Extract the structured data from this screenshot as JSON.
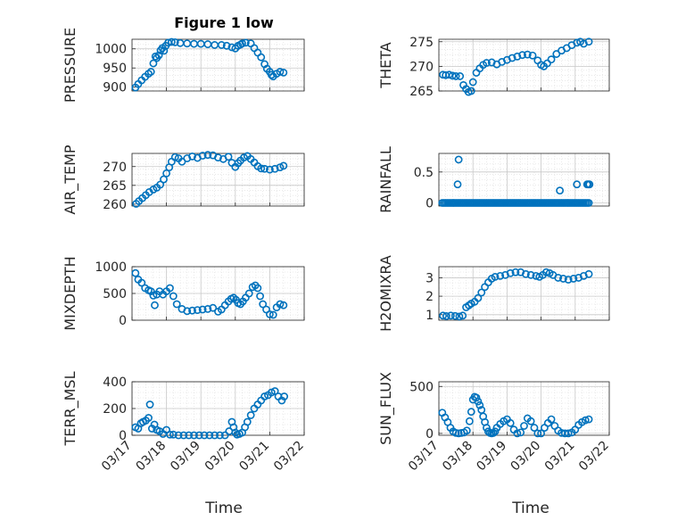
{
  "figure": {
    "title": "Figure 1 low",
    "xlabel": "Time"
  },
  "chart_data": [
    {
      "type": "scatter",
      "ylabel": "PRESSURE",
      "xlim": [
        "03/17",
        "03/22"
      ],
      "ylim": [
        890,
        1025
      ],
      "yticks": [
        "900",
        "950",
        "1000"
      ],
      "xtick_labels": [
        "03/17",
        "03/18",
        "03/19",
        "03/20",
        "03/21",
        "03/22"
      ],
      "grid": true,
      "series": [
        {
          "x": [
            17.1,
            17.18,
            17.28,
            17.38,
            17.48,
            17.55,
            17.62,
            17.68,
            17.72,
            17.78,
            17.83,
            17.88,
            17.93,
            17.98,
            18.05,
            18.15,
            18.25,
            18.4,
            18.6,
            18.8,
            19.0,
            19.2,
            19.4,
            19.6,
            19.75,
            19.9,
            20.0,
            20.08,
            20.15,
            20.2,
            20.3,
            20.45,
            20.55,
            20.65,
            20.75,
            20.85,
            20.92,
            21.0,
            21.05,
            21.1,
            21.2,
            21.3,
            21.4
          ],
          "y": [
            899,
            908,
            918,
            927,
            935,
            940,
            962,
            980,
            976,
            983,
            996,
            1002,
            995,
            1008,
            1016,
            1018,
            1017,
            1015,
            1014,
            1013,
            1013,
            1012,
            1010,
            1010,
            1008,
            1004,
            1001,
            1008,
            1011,
            1014,
            1016,
            1014,
            1002,
            990,
            978,
            960,
            948,
            940,
            932,
            928,
            935,
            940,
            938
          ]
        }
      ]
    },
    {
      "type": "scatter",
      "ylabel": "THETA",
      "ylim": [
        265,
        275.5
      ],
      "yticks": [
        "265",
        "270",
        "275"
      ],
      "grid": true,
      "series": [
        {
          "x": [
            17.12,
            17.2,
            17.3,
            17.4,
            17.5,
            17.62,
            17.72,
            17.8,
            17.87,
            17.95,
            18.0,
            18.1,
            18.2,
            18.3,
            18.4,
            18.55,
            18.7,
            18.85,
            19.0,
            19.15,
            19.3,
            19.45,
            19.6,
            19.75,
            19.9,
            20.0,
            20.08,
            20.18,
            20.3,
            20.45,
            20.6,
            20.75,
            20.9,
            21.05,
            21.15,
            21.25,
            21.4
          ],
          "y": [
            268.3,
            268.2,
            268.3,
            268.1,
            268.0,
            268.0,
            266.2,
            265.4,
            264.8,
            265.0,
            266.8,
            268.7,
            269.6,
            270.3,
            270.7,
            270.8,
            270.4,
            270.9,
            271.3,
            271.7,
            272.0,
            272.3,
            272.4,
            272.2,
            271.2,
            270.3,
            270.0,
            270.6,
            271.4,
            272.5,
            273.2,
            273.7,
            274.3,
            274.8,
            275.0,
            274.6,
            275.0
          ]
        }
      ]
    },
    {
      "type": "scatter",
      "ylabel": "AIR_TEMP",
      "ylim": [
        259.5,
        273.5
      ],
      "yticks": [
        "260",
        "265",
        "270"
      ],
      "grid": true,
      "series": [
        {
          "x": [
            17.12,
            17.2,
            17.3,
            17.4,
            17.5,
            17.62,
            17.72,
            17.82,
            17.92,
            18.0,
            18.08,
            18.15,
            18.25,
            18.35,
            18.45,
            18.6,
            18.75,
            18.9,
            19.05,
            19.2,
            19.35,
            19.5,
            19.65,
            19.8,
            19.9,
            20.0,
            20.08,
            20.15,
            20.25,
            20.35,
            20.45,
            20.55,
            20.65,
            20.75,
            20.85,
            21.0,
            21.15,
            21.3,
            21.4
          ],
          "y": [
            260.1,
            260.8,
            261.6,
            262.4,
            263.2,
            263.9,
            264.4,
            265.2,
            266.6,
            268.2,
            269.8,
            271.3,
            272.5,
            272.2,
            271.3,
            272.2,
            272.7,
            272.3,
            272.9,
            273.1,
            273.0,
            272.4,
            272.0,
            272.6,
            271.0,
            269.9,
            270.9,
            271.6,
            272.4,
            272.8,
            272.0,
            271.1,
            270.1,
            269.5,
            269.4,
            269.2,
            269.4,
            269.8,
            270.2
          ]
        }
      ]
    },
    {
      "type": "scatter",
      "ylabel": "RAINFALL",
      "ylim": [
        -0.05,
        0.8
      ],
      "yticks": [
        "0",
        "0.5"
      ],
      "grid": true,
      "series": [
        {
          "x": [
            17.1,
            17.15,
            17.2,
            17.25,
            17.3,
            17.35,
            17.4,
            17.45,
            17.5,
            17.55,
            17.6,
            17.65,
            17.7,
            17.75,
            17.8,
            17.85,
            17.9,
            17.95,
            18.0,
            18.05,
            18.1,
            18.15,
            18.2,
            18.25,
            18.3,
            18.35,
            18.4,
            18.45,
            18.5,
            18.55,
            18.6,
            18.65,
            18.7,
            18.75,
            18.8,
            18.85,
            18.9,
            18.95,
            19.0,
            19.05,
            19.1,
            19.15,
            19.2,
            19.25,
            19.3,
            19.35,
            19.4,
            19.45,
            19.5,
            19.55,
            19.6,
            19.65,
            19.7,
            19.75,
            19.8,
            19.85,
            19.9,
            19.95,
            20.0,
            20.05,
            20.1,
            20.15,
            20.2,
            20.25,
            20.3,
            20.35,
            20.4,
            20.45,
            20.5,
            20.55,
            20.6,
            20.65,
            20.7,
            20.75,
            20.8,
            20.85,
            20.9,
            20.95,
            21.0,
            21.05,
            21.1,
            21.15,
            21.2,
            21.25,
            21.3,
            21.35,
            21.4,
            17.55,
            17.58,
            20.55,
            21.05,
            21.35,
            21.38,
            21.42
          ],
          "y": [
            0,
            0,
            0,
            0,
            0,
            0,
            0,
            0,
            0,
            0,
            0,
            0,
            0,
            0,
            0,
            0,
            0,
            0,
            0,
            0,
            0,
            0,
            0,
            0,
            0,
            0,
            0,
            0,
            0,
            0,
            0,
            0,
            0,
            0,
            0,
            0,
            0,
            0,
            0,
            0,
            0,
            0,
            0,
            0,
            0,
            0,
            0,
            0,
            0,
            0,
            0,
            0,
            0,
            0,
            0,
            0,
            0,
            0,
            0,
            0,
            0,
            0,
            0,
            0,
            0,
            0,
            0,
            0,
            0,
            0,
            0,
            0,
            0,
            0,
            0,
            0,
            0,
            0,
            0,
            0,
            0,
            0,
            0,
            0,
            0,
            0,
            0,
            0.3,
            0.7,
            0.2,
            0.3,
            0.3,
            0.3,
            0.3
          ]
        }
      ]
    },
    {
      "type": "scatter",
      "ylabel": "MIXDEPTH",
      "ylim": [
        0,
        1000
      ],
      "yticks": [
        "0",
        "500",
        "1000"
      ],
      "grid": true,
      "series": [
        {
          "x": [
            17.1,
            17.18,
            17.28,
            17.38,
            17.48,
            17.55,
            17.62,
            17.66,
            17.72,
            17.8,
            17.9,
            18.0,
            18.1,
            18.2,
            18.3,
            18.45,
            18.6,
            18.75,
            18.9,
            19.05,
            19.2,
            19.35,
            19.5,
            19.6,
            19.7,
            19.8,
            19.88,
            19.95,
            20.02,
            20.08,
            20.15,
            20.22,
            20.3,
            20.4,
            20.5,
            20.58,
            20.65,
            20.72,
            20.8,
            20.9,
            21.0,
            21.1,
            21.2,
            21.3,
            21.4
          ],
          "y": [
            880,
            760,
            700,
            600,
            560,
            540,
            460,
            280,
            480,
            540,
            480,
            540,
            600,
            450,
            300,
            210,
            170,
            180,
            190,
            200,
            210,
            230,
            160,
            200,
            280,
            350,
            400,
            420,
            380,
            320,
            300,
            350,
            420,
            500,
            620,
            650,
            600,
            450,
            300,
            200,
            110,
            100,
            240,
            300,
            280
          ]
        }
      ]
    },
    {
      "type": "scatter",
      "ylabel": "H2OMIXRA",
      "ylim": [
        0.7,
        3.6
      ],
      "yticks": [
        "1",
        "2",
        "3"
      ],
      "grid": true,
      "series": [
        {
          "x": [
            17.12,
            17.22,
            17.35,
            17.48,
            17.6,
            17.7,
            17.8,
            17.88,
            17.95,
            18.05,
            18.15,
            18.25,
            18.35,
            18.45,
            18.55,
            18.65,
            18.8,
            18.95,
            19.1,
            19.25,
            19.4,
            19.55,
            19.7,
            19.85,
            19.95,
            20.05,
            20.15,
            20.25,
            20.35,
            20.5,
            20.65,
            20.8,
            20.95,
            21.1,
            21.25,
            21.4
          ],
          "y": [
            0.95,
            0.92,
            0.95,
            0.93,
            0.9,
            0.95,
            1.4,
            1.5,
            1.6,
            1.7,
            1.9,
            2.2,
            2.5,
            2.75,
            2.95,
            3.05,
            3.1,
            3.15,
            3.25,
            3.3,
            3.3,
            3.2,
            3.15,
            3.1,
            3.05,
            3.15,
            3.3,
            3.25,
            3.15,
            3.0,
            2.95,
            2.9,
            2.95,
            3.0,
            3.1,
            3.2
          ]
        }
      ]
    },
    {
      "type": "scatter",
      "ylabel": "TERR_MSL",
      "ylim": [
        0,
        400
      ],
      "yticks": [
        "0",
        "200",
        "400"
      ],
      "grid": true,
      "series": [
        {
          "x": [
            17.1,
            17.18,
            17.26,
            17.32,
            17.4,
            17.48,
            17.52,
            17.58,
            17.65,
            17.72,
            17.8,
            17.9,
            18.0,
            18.1,
            18.2,
            18.35,
            18.5,
            18.65,
            18.8,
            18.95,
            19.1,
            19.25,
            19.4,
            19.55,
            19.7,
            19.82,
            19.9,
            19.95,
            20.0,
            20.05,
            20.12,
            20.2,
            20.28,
            20.35,
            20.45,
            20.55,
            20.65,
            20.75,
            20.85,
            20.95,
            21.05,
            21.15,
            21.25,
            21.35,
            21.42
          ],
          "y": [
            60,
            50,
            90,
            100,
            110,
            130,
            230,
            50,
            80,
            40,
            30,
            10,
            40,
            5,
            5,
            0,
            0,
            0,
            0,
            0,
            0,
            0,
            0,
            0,
            0,
            30,
            100,
            60,
            20,
            5,
            10,
            20,
            60,
            100,
            150,
            200,
            230,
            260,
            290,
            300,
            320,
            330,
            290,
            260,
            290
          ]
        }
      ]
    },
    {
      "type": "scatter",
      "ylabel": "SUN_FLUX",
      "ylim": [
        -20,
        550
      ],
      "yticks": [
        "0",
        "500"
      ],
      "grid": true,
      "series": [
        {
          "x": [
            17.1,
            17.18,
            17.26,
            17.34,
            17.42,
            17.5,
            17.58,
            17.66,
            17.74,
            17.82,
            17.9,
            17.95,
            18.0,
            18.05,
            18.1,
            18.15,
            18.2,
            18.25,
            18.3,
            18.35,
            18.4,
            18.45,
            18.5,
            18.55,
            18.6,
            18.65,
            18.7,
            18.8,
            18.9,
            19.0,
            19.1,
            19.2,
            19.3,
            19.4,
            19.5,
            19.6,
            19.7,
            19.8,
            19.9,
            20.0,
            20.1,
            20.2,
            20.3,
            20.4,
            20.5,
            20.6,
            20.7,
            20.8,
            20.9,
            21.0,
            21.1,
            21.2,
            21.3,
            21.4
          ],
          "y": [
            220,
            170,
            120,
            60,
            20,
            5,
            0,
            5,
            10,
            30,
            130,
            230,
            360,
            390,
            380,
            340,
            300,
            250,
            180,
            120,
            60,
            20,
            5,
            0,
            5,
            20,
            60,
            100,
            130,
            150,
            110,
            40,
            0,
            10,
            80,
            160,
            130,
            60,
            0,
            0,
            60,
            110,
            150,
            80,
            30,
            5,
            0,
            0,
            10,
            40,
            90,
            120,
            140,
            150
          ]
        }
      ]
    }
  ]
}
